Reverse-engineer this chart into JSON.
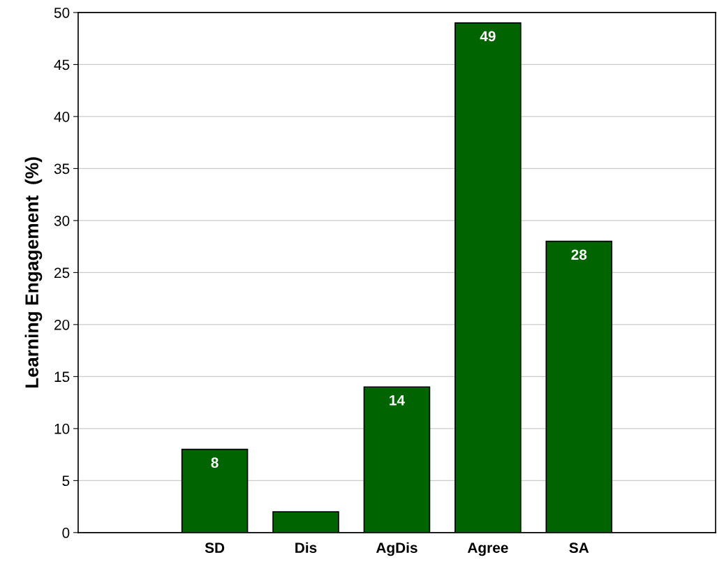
{
  "chart_data": {
    "type": "bar",
    "ylabel": "Learning Engagement  (%)",
    "categories": [
      null,
      "SD",
      "Dis",
      "AgDis",
      "Agree",
      "SA",
      null
    ],
    "values": [
      null,
      8,
      2,
      14,
      49,
      28,
      null
    ],
    "value_labels": [
      null,
      "8",
      null,
      "14",
      "49",
      "28",
      null
    ],
    "color": "#006400",
    "ylim": [
      0,
      50
    ],
    "yticks": [
      0,
      5,
      10,
      15,
      20,
      25,
      30,
      35,
      40,
      45,
      50
    ],
    "grid": "y"
  }
}
